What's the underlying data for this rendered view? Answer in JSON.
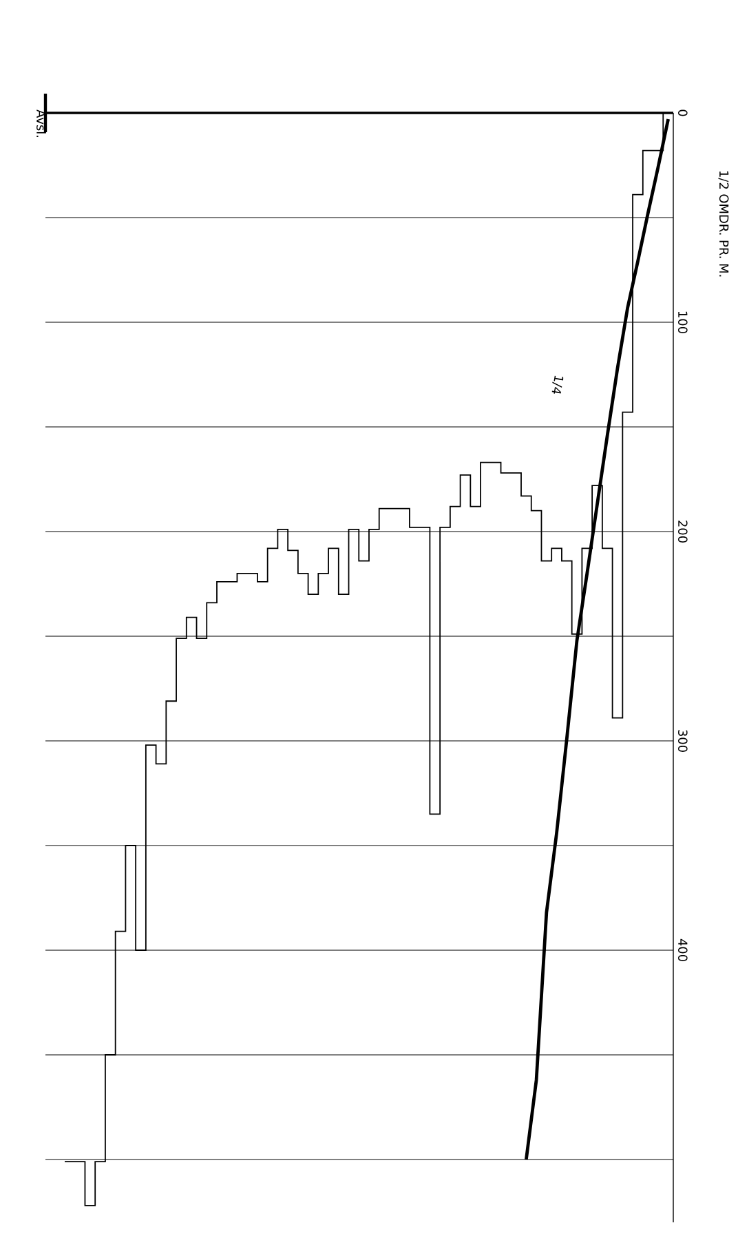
{
  "chart_data": {
    "type": "step",
    "ylabel": "1/2 OMDR. PR. M.",
    "categories": [
      null,
      null,
      null,
      null,
      null,
      null,
      null,
      null,
      null,
      null,
      null,
      null,
      null,
      null,
      null,
      null,
      null,
      null,
      null,
      null,
      null,
      null,
      null,
      null,
      null,
      null,
      null,
      null,
      null,
      null,
      null,
      null,
      null,
      null,
      null,
      null,
      null,
      null,
      null,
      null,
      null,
      null,
      null,
      null,
      null,
      null,
      null,
      null,
      null,
      null,
      null,
      null,
      null,
      null,
      null,
      null,
      null,
      null,
      null,
      null
    ],
    "series": [
      {
        "color": "#000000",
        "values": [
          501,
          501,
          522,
          501,
          450,
          391,
          350,
          400,
          302,
          311,
          281,
          251,
          241,
          251,
          234,
          224,
          224,
          220,
          220,
          224,
          208,
          199,
          209,
          220,
          230,
          220,
          208,
          230,
          199,
          214,
          199,
          189,
          189,
          189,
          198,
          198,
          335,
          198,
          188,
          173,
          188,
          167,
          167,
          172,
          172,
          183,
          190,
          214,
          208,
          214,
          249,
          208,
          178,
          208,
          289,
          143,
          39,
          18,
          18,
          0
        ]
      },
      {
        "type": "line",
        "color": "#000000",
        "values": [
          null,
          null,
          null,
          null,
          null,
          null,
          null,
          null,
          null,
          null,
          null,
          null,
          null,
          null,
          null,
          null,
          null,
          null,
          null,
          null,
          null,
          null,
          null,
          null,
          null,
          null,
          null,
          null,
          null,
          null,
          null,
          null,
          null,
          null,
          null,
          null,
          null,
          null,
          null,
          null,
          null,
          null,
          null,
          null,
          null,
          500,
          462,
          382,
          344,
          299,
          252,
          220,
          187,
          154,
          122,
          93,
          71,
          48,
          26,
          3
        ]
      }
    ],
    "ylim": [
      530,
      0
    ],
    "yticks": [
      0,
      {
        "value": 50,
        "label": null
      },
      100,
      {
        "value": 150,
        "label": null
      },
      200,
      {
        "value": 250,
        "label": null
      },
      300,
      {
        "value": 350,
        "label": null
      },
      400,
      {
        "value": 450,
        "label": null
      },
      {
        "value": 500,
        "label": null
      }
    ],
    "grid": "y",
    "tick_labels": "y",
    "marker": "none",
    "line_style": "solid",
    "ref_lines": [
      {
        "axis": "y",
        "value": 0,
        "label": "Avsl."
      }
    ],
    "annotations": [
      "1/4"
    ]
  }
}
